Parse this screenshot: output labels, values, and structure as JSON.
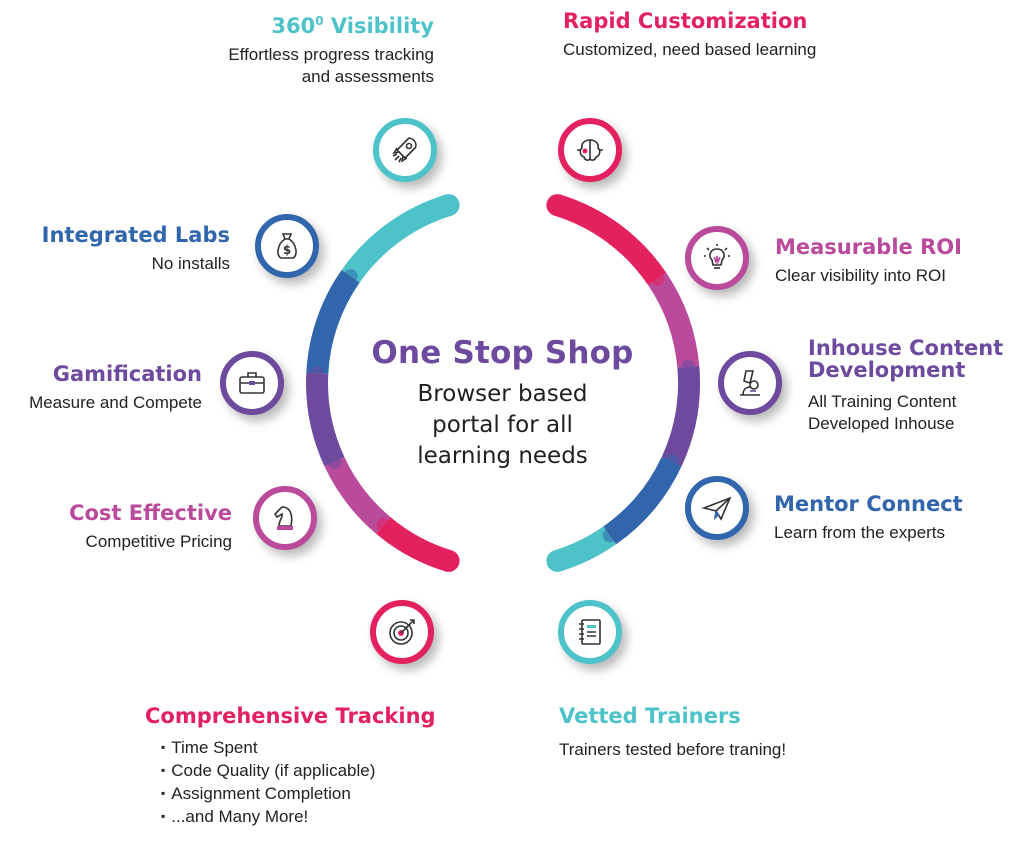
{
  "center": {
    "title": "One Stop Shop",
    "line1": "Browser based",
    "line2": "portal for all",
    "line3": "learning needs"
  },
  "colors": {
    "teal": "#4dc3c9",
    "blue": "#3166ac",
    "purple": "#6e4a9e",
    "magenta": "#b94a9c",
    "pink": "#e3215f"
  },
  "features": {
    "visibility": {
      "title_main": "360",
      "title_sup": "0",
      "title_rest": " Visibility",
      "desc1": "Effortless progress tracking",
      "desc2": "and assessments",
      "icon": "rocket-icon"
    },
    "labs": {
      "title": "Integrated Labs",
      "desc": "No installs",
      "icon": "money-bag-icon"
    },
    "gamification": {
      "title": "Gamification",
      "desc": "Measure and Compete",
      "icon": "briefcase-icon"
    },
    "cost": {
      "title": "Cost Effective",
      "desc": "Competitive Pricing",
      "icon": "chess-knight-icon"
    },
    "tracking": {
      "title": "Comprehensive Tracking",
      "items": [
        "Time Spent",
        "Code Quality (if applicable)",
        "Assignment Completion",
        "...and Many More!"
      ],
      "icon": "target-icon"
    },
    "customization": {
      "title": "Rapid Customization",
      "desc": "Customized, need based learning",
      "icon": "brain-icon"
    },
    "roi": {
      "title": "Measurable ROI",
      "desc": "Clear visibility into ROI",
      "icon": "lightbulb-icon"
    },
    "inhouse": {
      "title1": "Inhouse Content",
      "title2": "Development",
      "desc1": "All Training Content",
      "desc2": "Developed Inhouse",
      "icon": "microscope-icon"
    },
    "mentor": {
      "title": "Mentor Connect",
      "desc": "Learn from the experts",
      "icon": "paper-plane-icon"
    },
    "trainers": {
      "title": "Vetted Trainers",
      "desc": "Trainers tested before traning!",
      "icon": "notebook-icon"
    }
  }
}
